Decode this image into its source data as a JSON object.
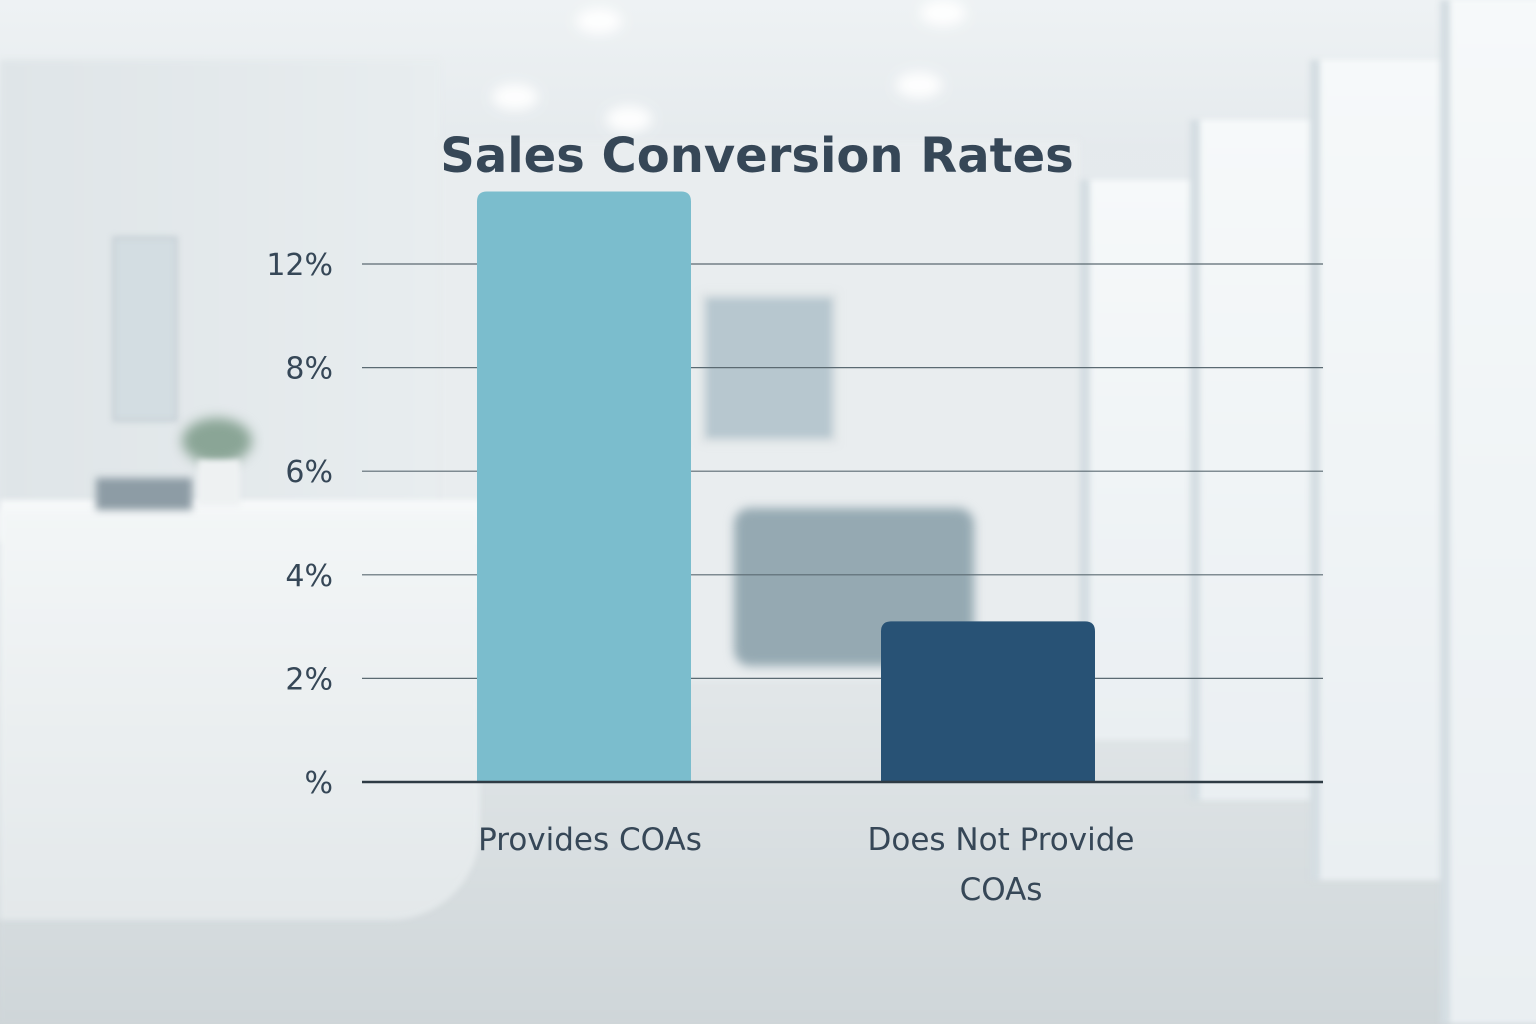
{
  "chart_data": {
    "type": "bar",
    "title": "Sales Conversion Rates",
    "xlabel": "",
    "ylabel": "",
    "categories": [
      "Provides COAs",
      "Does Not Provide COAs"
    ],
    "category_lines": [
      [
        "Provides COAs"
      ],
      [
        "Does Not Provide",
        "COAs"
      ]
    ],
    "values": [
      11.4,
      3.1
    ],
    "colors": [
      "#7bbdcd",
      "#285275"
    ],
    "y_ticks": [
      0,
      2,
      4,
      6,
      8,
      12
    ],
    "y_tick_labels": [
      "%",
      "2%",
      "4%",
      "6%",
      "8%",
      "12%"
    ],
    "ylim": [
      0,
      12
    ],
    "grid": true,
    "legend": "none"
  }
}
